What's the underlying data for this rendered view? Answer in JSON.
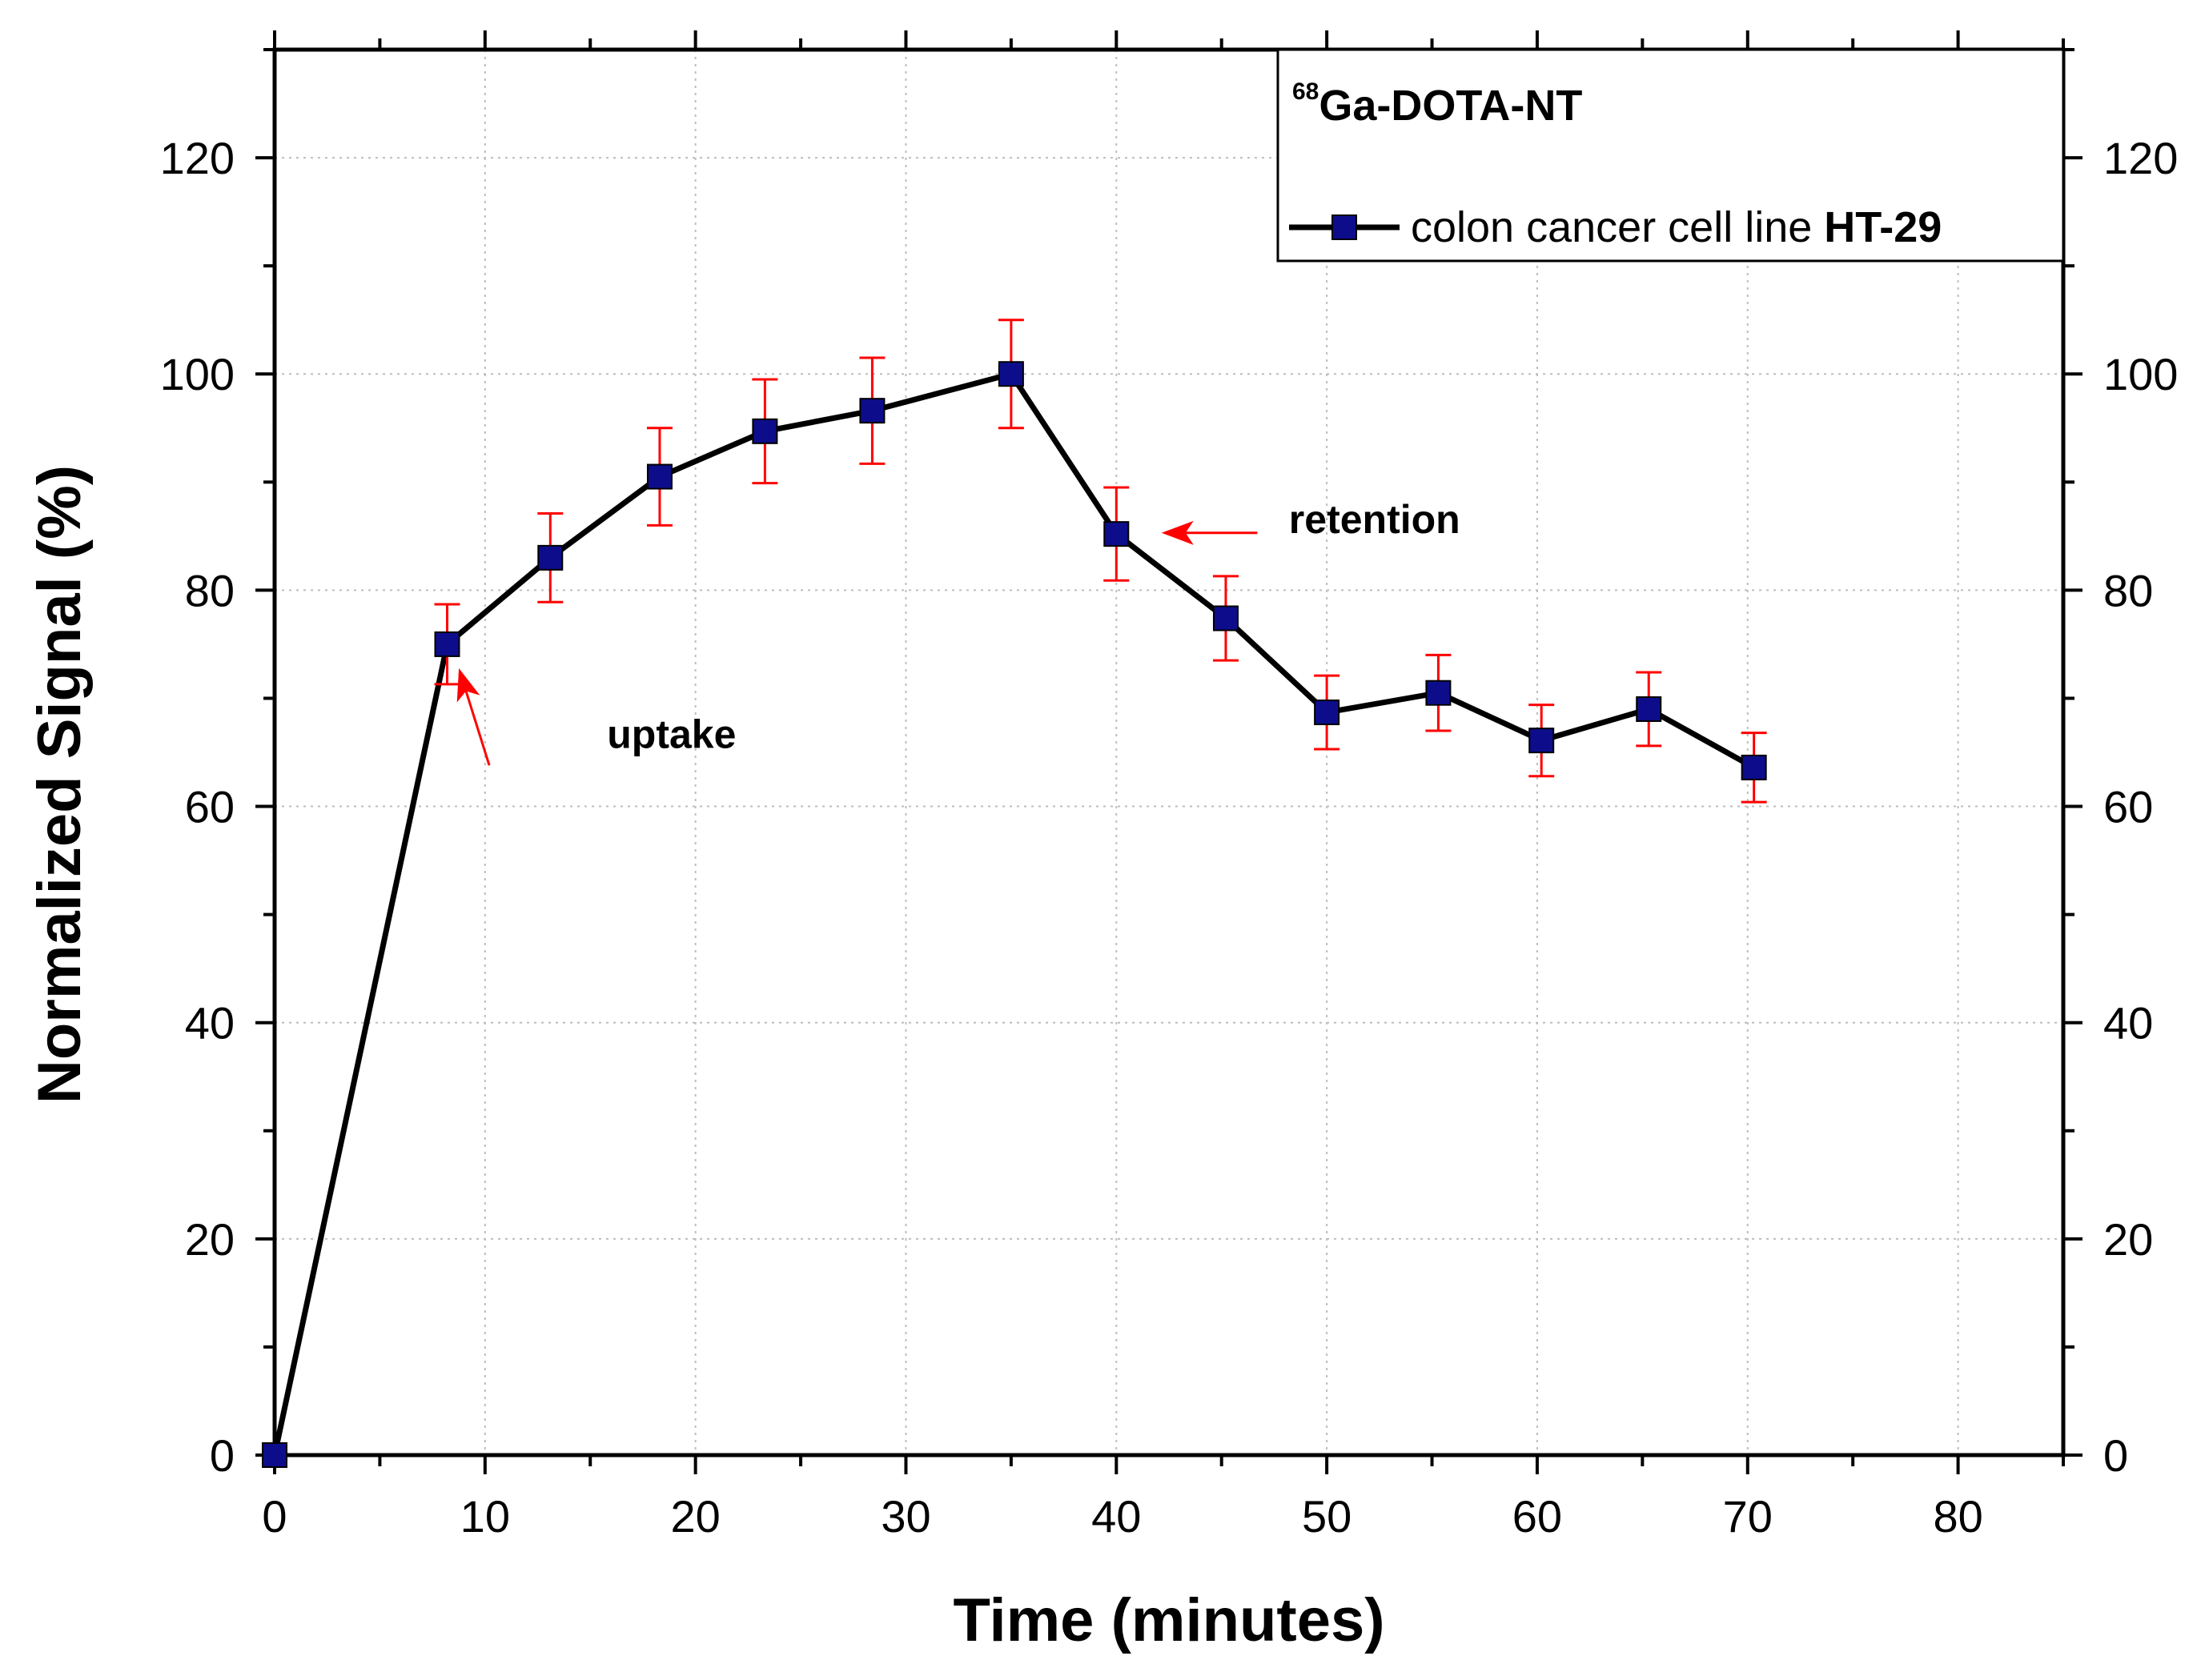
{
  "chart_data": {
    "type": "line",
    "xlabel": "Time (minutes)",
    "ylabel": "Normalized Signal (%)",
    "xlim": [
      0,
      85
    ],
    "ylim": [
      0,
      130
    ],
    "x_major_ticks": [
      0,
      10,
      20,
      30,
      40,
      50,
      60,
      70,
      80
    ],
    "x_tick_labels": [
      "0",
      "10",
      "20",
      "30",
      "40",
      "50",
      "60",
      "70",
      "80"
    ],
    "x_minor_ticks": [
      5,
      15,
      25,
      35,
      45,
      55,
      65,
      75,
      85
    ],
    "y_major_ticks": [
      0,
      20,
      40,
      60,
      80,
      100,
      120
    ],
    "y_tick_labels": [
      "0",
      "20",
      "40",
      "60",
      "80",
      "100",
      "120"
    ],
    "y_minor_ticks": [
      10,
      30,
      50,
      70,
      90,
      110,
      130
    ],
    "grid": true,
    "legend_position": "top-right",
    "legend": {
      "title_superscript": "68",
      "title": "Ga-DOTA-NT",
      "entry_prefix": "colon cancer cell line ",
      "entry_bold": "HT-29"
    },
    "series": [
      {
        "name": "colon cancer cell line HT-29",
        "line_color": "#000000",
        "marker_color": "#0d0d8c",
        "error_color": "#ff0000",
        "x": [
          0,
          8.2,
          13.1,
          18.3,
          23.3,
          28.4,
          35.0,
          40.0,
          45.2,
          50.0,
          55.3,
          60.2,
          65.3,
          70.3
        ],
        "y": [
          0,
          75.0,
          83.0,
          90.5,
          94.7,
          96.6,
          100.0,
          85.2,
          77.4,
          68.7,
          70.5,
          66.1,
          69.0,
          63.6
        ],
        "err": [
          0,
          3.7,
          4.1,
          4.5,
          4.8,
          4.9,
          5.0,
          4.3,
          3.9,
          3.4,
          3.5,
          3.3,
          3.4,
          3.2
        ]
      }
    ],
    "annotations": [
      {
        "text": "uptake",
        "x": 15.8,
        "y": 65.4,
        "arrow_from": [
          10.2,
          63.8
        ],
        "arrow_to": [
          8.8,
          72.5
        ]
      },
      {
        "text": "retention",
        "x": 48.2,
        "y": 85.3,
        "arrow_from": [
          46.7,
          85.3
        ],
        "arrow_to": [
          42.3,
          85.3
        ]
      }
    ],
    "colors": {
      "annotation_arrow": "#ff0000",
      "grid": "#bdbdbd",
      "axis": "#000000"
    }
  }
}
